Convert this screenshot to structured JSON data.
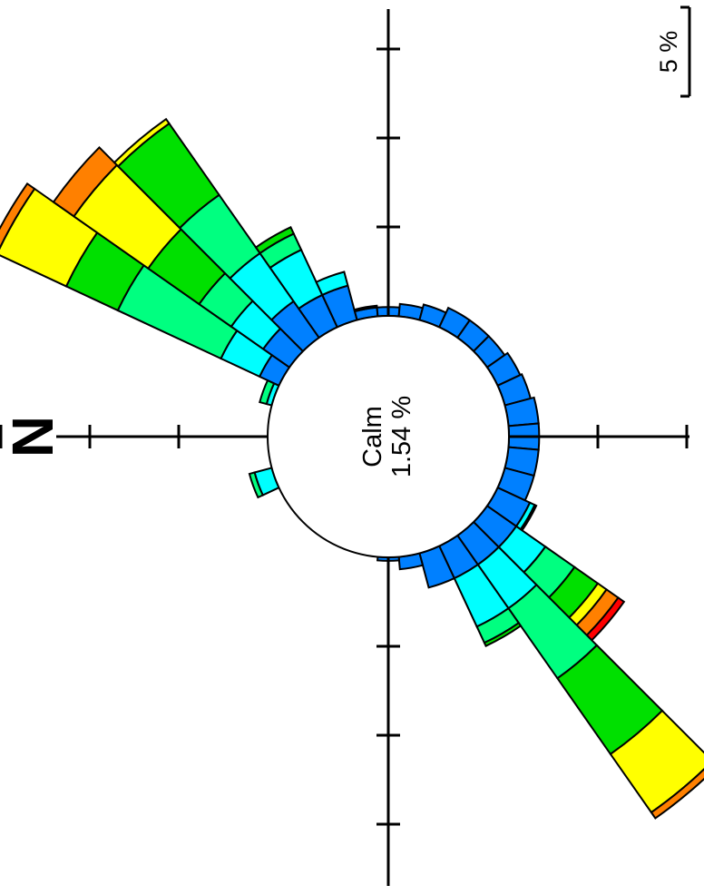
{
  "chart_data": {
    "type": "wind-rose",
    "orientation": "rotated 90 degrees counter-clockwise (north points left)",
    "north_label": "N",
    "calm_label": "Calm",
    "calm_value": "1.54 %",
    "scale_label": "5 %",
    "scale_value_percent": 5,
    "ring_ticks_percent": [
      5,
      10,
      15,
      20
    ],
    "bands": [
      {
        "name": "band-1",
        "color": "#0080ff"
      },
      {
        "name": "band-2",
        "color": "#00ffff"
      },
      {
        "name": "band-3",
        "color": "#00ff80"
      },
      {
        "name": "band-4",
        "color": "#00e000"
      },
      {
        "name": "band-5",
        "color": "#ffff00"
      },
      {
        "name": "band-6",
        "color": "#ff8000"
      },
      {
        "name": "band-7",
        "color": "#ff0000"
      }
    ],
    "sectors": [
      {
        "direction_deg": 0,
        "cumulative_percent": [
          0.0
        ]
      },
      {
        "direction_deg": 10,
        "cumulative_percent": [
          0.0
        ]
      },
      {
        "direction_deg": 20,
        "cumulative_percent": [
          0.0,
          0.3,
          0.7
        ]
      },
      {
        "direction_deg": 30,
        "cumulative_percent": [
          1.2,
          3.6,
          10.0,
          13.2,
          17.5,
          18.0
        ]
      },
      {
        "direction_deg": 40,
        "cumulative_percent": [
          1.8,
          4.0,
          6.2,
          9.7,
          14.8,
          16.2
        ]
      },
      {
        "direction_deg": 50,
        "cumulative_percent": [
          2.5,
          5.8,
          9.8,
          14.7,
          15.0
        ]
      },
      {
        "direction_deg": 60,
        "cumulative_percent": [
          2.0,
          4.8,
          5.8,
          6.2
        ]
      },
      {
        "direction_deg": 70,
        "cumulative_percent": [
          2.0,
          2.8
        ]
      },
      {
        "direction_deg": 80,
        "cumulative_percent": [
          0.5,
          0.6
        ]
      },
      {
        "direction_deg": 90,
        "cumulative_percent": [
          0.5
        ]
      },
      {
        "direction_deg": 100,
        "cumulative_percent": [
          0.7
        ]
      },
      {
        "direction_deg": 110,
        "cumulative_percent": [
          0.9
        ]
      },
      {
        "direction_deg": 120,
        "cumulative_percent": [
          1.2
        ]
      },
      {
        "direction_deg": 130,
        "cumulative_percent": [
          1.2
        ]
      },
      {
        "direction_deg": 140,
        "cumulative_percent": [
          1.2
        ]
      },
      {
        "direction_deg": 150,
        "cumulative_percent": [
          1.4
        ]
      },
      {
        "direction_deg": 160,
        "cumulative_percent": [
          1.5
        ]
      },
      {
        "direction_deg": 170,
        "cumulative_percent": [
          1.7
        ]
      },
      {
        "direction_deg": 180,
        "cumulative_percent": [
          1.7
        ]
      },
      {
        "direction_deg": 190,
        "cumulative_percent": [
          1.7
        ]
      },
      {
        "direction_deg": 200,
        "cumulative_percent": [
          1.7
        ]
      },
      {
        "direction_deg": 210,
        "cumulative_percent": [
          2.0,
          2.3,
          2.4
        ]
      },
      {
        "direction_deg": 220,
        "cumulative_percent": [
          2.0,
          4.0,
          6.0,
          7.6,
          8.2,
          9.0,
          9.4
        ]
      },
      {
        "direction_deg": 230,
        "cumulative_percent": [
          2.0,
          5.0,
          9.8,
          15.0,
          19.0,
          19.4
        ]
      },
      {
        "direction_deg": 240,
        "cumulative_percent": [
          2.0,
          5.0,
          6.0,
          6.2
        ]
      },
      {
        "direction_deg": 250,
        "cumulative_percent": [
          2.0,
          2.0,
          2.0
        ]
      },
      {
        "direction_deg": 260,
        "cumulative_percent": [
          0.7
        ]
      },
      {
        "direction_deg": 270,
        "cumulative_percent": [
          0.2
        ]
      },
      {
        "direction_deg": 280,
        "cumulative_percent": [
          0.0
        ]
      },
      {
        "direction_deg": 290,
        "cumulative_percent": [
          0.0
        ]
      },
      {
        "direction_deg": 300,
        "cumulative_percent": [
          0.0
        ]
      },
      {
        "direction_deg": 310,
        "cumulative_percent": [
          0.0
        ]
      },
      {
        "direction_deg": 320,
        "cumulative_percent": [
          0.0
        ]
      },
      {
        "direction_deg": 330,
        "cumulative_percent": [
          0.0
        ]
      },
      {
        "direction_deg": 340,
        "cumulative_percent": [
          0.0,
          1.0,
          1.3
        ]
      },
      {
        "direction_deg": 350,
        "cumulative_percent": [
          0.0
        ]
      }
    ],
    "grid": false,
    "legend": "none"
  }
}
